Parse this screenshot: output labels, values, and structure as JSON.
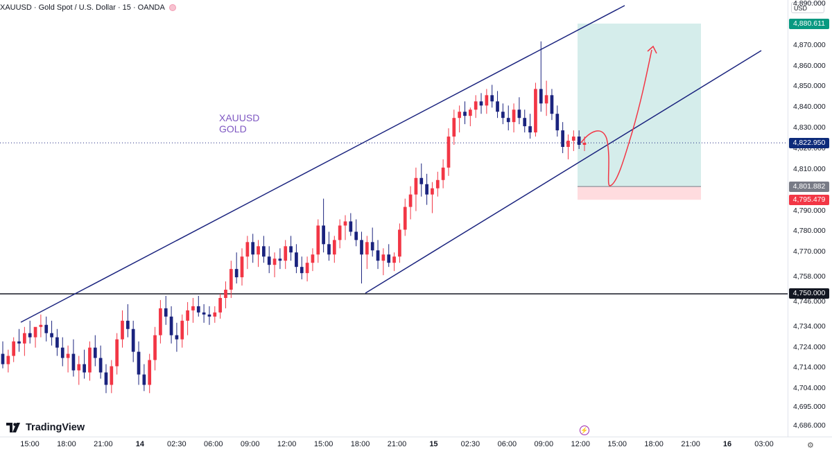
{
  "header": {
    "symbol_line": "XAUUSD · Gold Spot / U.S. Dollar · 15 · OANDA",
    "symbol_icon": "status-circle-icon"
  },
  "branding": {
    "logo_text": "TradingView",
    "logo_icon": "tradingview-logo-icon"
  },
  "price_axis": {
    "currency": "USD",
    "ticks": [
      "4,890.000",
      "4,880.611",
      "4,870.000",
      "4,860.000",
      "4,850.000",
      "4,840.000",
      "4,830.000",
      "4,820.000",
      "4,810.000",
      "4,801.882",
      "4,790.000",
      "4,780.000",
      "4,770.000",
      "4,758.000",
      "4,746.000",
      "4,734.000",
      "4,724.000",
      "4,714.000",
      "4,704.000",
      "4,695.000",
      "4,686.000"
    ],
    "visible_ticks": [
      "4,890.000",
      "4,870.000",
      "4,860.000",
      "4,850.000",
      "4,840.000",
      "4,830.000",
      "4,820.000",
      "4,810.000",
      "4,790.000",
      "4,780.000",
      "4,770.000",
      "4,758.000",
      "4,746.000",
      "4,734.000",
      "4,724.000",
      "4,714.000",
      "4,704.000",
      "4,695.000",
      "4,686.000"
    ]
  },
  "price_tags": [
    {
      "label": "4,880.611",
      "color": "#089981",
      "price": 4880.611
    },
    {
      "label": "4,822.950",
      "color": "#0d2b7a",
      "price": 4822.95
    },
    {
      "label": "4,801.882",
      "color": "#787b86",
      "price": 4801.882
    },
    {
      "label": "4,795.479",
      "color": "#f23645",
      "price": 4795.479
    },
    {
      "label": "4,750.000",
      "color": "#131722",
      "price": 4750.0
    }
  ],
  "time_axis": {
    "labels": [
      "15:00",
      "18:00",
      "21:00",
      "14",
      "02:30",
      "06:00",
      "09:00",
      "12:00",
      "15:00",
      "18:00",
      "21:00",
      "15",
      "02:30",
      "06:00",
      "09:00",
      "12:00",
      "15:00",
      "18:00",
      "21:00",
      "16",
      "03:00"
    ],
    "bold_labels": [
      "14",
      "15",
      "16"
    ]
  },
  "annotation": {
    "line1": "XAUUSD",
    "line2": "GOLD",
    "color": "#7e57c2"
  },
  "controls": {
    "lightning_icon": "lightning-icon",
    "settings_icon": "gear-icon"
  },
  "chart_data": {
    "type": "candlestick",
    "title": "XAUUSD · Gold Spot / U.S. Dollar · 15 · OANDA",
    "xlabel": "",
    "ylabel": "",
    "ylim": [
      4681,
      4892
    ],
    "up_color": "#f23645",
    "down_color": "#1a237e",
    "candles": [
      [
        4721,
        4727,
        4714,
        4716
      ],
      [
        4716,
        4723,
        4712,
        4720
      ],
      [
        4720,
        4729,
        4717,
        4727
      ],
      [
        4727,
        4733,
        4722,
        4726
      ],
      [
        4726,
        4734,
        4720,
        4731
      ],
      [
        4731,
        4737,
        4726,
        4729
      ],
      [
        4729,
        4733,
        4724,
        4734
      ],
      [
        4734,
        4740,
        4729,
        4735
      ],
      [
        4735,
        4739,
        4727,
        4731
      ],
      [
        4731,
        4737,
        4725,
        4729
      ],
      [
        4729,
        4733,
        4720,
        4724
      ],
      [
        4724,
        4729,
        4715,
        4719
      ],
      [
        4719,
        4725,
        4712,
        4721
      ],
      [
        4721,
        4728,
        4710,
        4713
      ],
      [
        4713,
        4720,
        4706,
        4716
      ],
      [
        4716,
        4723,
        4709,
        4712
      ],
      [
        4712,
        4727,
        4708,
        4724
      ],
      [
        4724,
        4730,
        4715,
        4719
      ],
      [
        4719,
        4725,
        4709,
        4712
      ],
      [
        4712,
        4716,
        4702,
        4706
      ],
      [
        4706,
        4718,
        4702,
        4715
      ],
      [
        4715,
        4731,
        4711,
        4728
      ],
      [
        4728,
        4742,
        4724,
        4737
      ],
      [
        4737,
        4745,
        4729,
        4733
      ],
      [
        4733,
        4737,
        4717,
        4722
      ],
      [
        4722,
        4727,
        4706,
        4711
      ],
      [
        4711,
        4716,
        4703,
        4706
      ],
      [
        4706,
        4721,
        4702,
        4718
      ],
      [
        4718,
        4734,
        4713,
        4730
      ],
      [
        4730,
        4747,
        4726,
        4743
      ],
      [
        4743,
        4749,
        4735,
        4739
      ],
      [
        4739,
        4744,
        4726,
        4730
      ],
      [
        4730,
        4736,
        4722,
        4728
      ],
      [
        4728,
        4740,
        4724,
        4737
      ],
      [
        4737,
        4746,
        4730,
        4742
      ],
      [
        4742,
        4748,
        4736,
        4744
      ],
      [
        4744,
        4749,
        4739,
        4741
      ],
      [
        4741,
        4745,
        4736,
        4740
      ],
      [
        4740,
        4744,
        4735,
        4739
      ],
      [
        4739,
        4744,
        4736,
        4741
      ],
      [
        4741,
        4750,
        4738,
        4748
      ],
      [
        4748,
        4756,
        4743,
        4752
      ],
      [
        4752,
        4766,
        4748,
        4762
      ],
      [
        4762,
        4770,
        4755,
        4758
      ],
      [
        4758,
        4772,
        4754,
        4768
      ],
      [
        4768,
        4778,
        4762,
        4775
      ],
      [
        4775,
        4779,
        4765,
        4769
      ],
      [
        4769,
        4776,
        4763,
        4773
      ],
      [
        4773,
        4778,
        4765,
        4768
      ],
      [
        4768,
        4773,
        4760,
        4764
      ],
      [
        4764,
        4770,
        4758,
        4767
      ],
      [
        4767,
        4772,
        4762,
        4766
      ],
      [
        4766,
        4776,
        4762,
        4773
      ],
      [
        4773,
        4778,
        4766,
        4770
      ],
      [
        4770,
        4774,
        4760,
        4763
      ],
      [
        4763,
        4768,
        4757,
        4760
      ],
      [
        4760,
        4768,
        4756,
        4765
      ],
      [
        4765,
        4772,
        4761,
        4769
      ],
      [
        4769,
        4786,
        4765,
        4783
      ],
      [
        4783,
        4796,
        4770,
        4774
      ],
      [
        4774,
        4780,
        4766,
        4769
      ],
      [
        4769,
        4778,
        4765,
        4776
      ],
      [
        4776,
        4786,
        4772,
        4783
      ],
      [
        4783,
        4788,
        4776,
        4785
      ],
      [
        4785,
        4789,
        4778,
        4780
      ],
      [
        4780,
        4786,
        4773,
        4776
      ],
      [
        4776,
        4780,
        4755,
        4769
      ],
      [
        4769,
        4778,
        4762,
        4775
      ],
      [
        4775,
        4782,
        4768,
        4771
      ],
      [
        4771,
        4776,
        4762,
        4766
      ],
      [
        4766,
        4772,
        4759,
        4769
      ],
      [
        4769,
        4774,
        4763,
        4765
      ],
      [
        4765,
        4770,
        4761,
        4768
      ],
      [
        4768,
        4784,
        4765,
        4781
      ],
      [
        4781,
        4796,
        4778,
        4792
      ],
      [
        4792,
        4802,
        4786,
        4798
      ],
      [
        4798,
        4811,
        4790,
        4806
      ],
      [
        4806,
        4813,
        4797,
        4803
      ],
      [
        4803,
        4808,
        4793,
        4798
      ],
      [
        4798,
        4804,
        4789,
        4801
      ],
      [
        4801,
        4809,
        4797,
        4805
      ],
      [
        4805,
        4815,
        4801,
        4811
      ],
      [
        4811,
        4830,
        4807,
        4826
      ],
      [
        4826,
        4839,
        4822,
        4835
      ],
      [
        4835,
        4841,
        4828,
        4838
      ],
      [
        4838,
        4843,
        4832,
        4836
      ],
      [
        4836,
        4840,
        4831,
        4839
      ],
      [
        4839,
        4846,
        4835,
        4843
      ],
      [
        4843,
        4847,
        4837,
        4841
      ],
      [
        4841,
        4849,
        4837,
        4846
      ],
      [
        4846,
        4851,
        4840,
        4843
      ],
      [
        4843,
        4848,
        4835,
        4838
      ],
      [
        4838,
        4842,
        4832,
        4835
      ],
      [
        4835,
        4841,
        4829,
        4833
      ],
      [
        4833,
        4842,
        4828,
        4839
      ],
      [
        4839,
        4845,
        4832,
        4835
      ],
      [
        4835,
        4839,
        4828,
        4831
      ],
      [
        4831,
        4837,
        4825,
        4828
      ],
      [
        4828,
        4852,
        4826,
        4849
      ],
      [
        4849,
        4872,
        4838,
        4842
      ],
      [
        4842,
        4853,
        4836,
        4846
      ],
      [
        4846,
        4849,
        4834,
        4837
      ],
      [
        4837,
        4841,
        4826,
        4829
      ],
      [
        4829,
        4833,
        4818,
        4821
      ],
      [
        4821,
        4827,
        4815,
        4824
      ],
      [
        4824,
        4829,
        4819,
        4826
      ],
      [
        4826,
        4829,
        4820,
        4822
      ],
      [
        4822,
        4826,
        4819,
        4823
      ]
    ],
    "horizontal_lines": [
      {
        "price": 4750.0,
        "label": "4,750.000"
      }
    ],
    "position_box": {
      "entry": 4801.882,
      "target": 4880.611,
      "stop": 4795.479
    },
    "current_price": 4822.95
  }
}
